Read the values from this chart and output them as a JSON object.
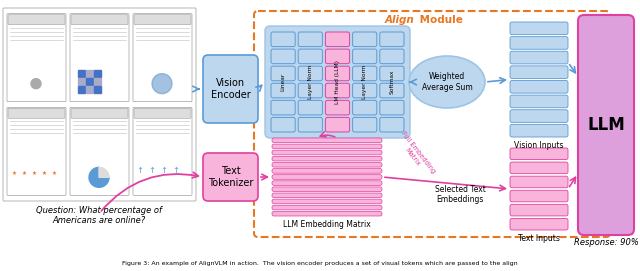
{
  "fig_width": 6.4,
  "fig_height": 2.71,
  "dpi": 100,
  "bg_color": "#ffffff",
  "orange_color": "#E87722",
  "blue_color": "#5B9BD5",
  "blue_light": "#BDD7EE",
  "blue_mid": "#9DC3E6",
  "pink_color": "#E040A0",
  "pink_light": "#F9B4DC",
  "pink_mid": "#F48CBF",
  "purple_light": "#DDA0DD",
  "align_module_label": "Align Module",
  "vision_encoder_label": "Vision\nEncoder",
  "text_tokenizer_label": "Text\nTokenizer",
  "llm_label": "LLM",
  "weighted_avg_label": "Weighted\nAverage Sum",
  "vision_inputs_label": "Vision Inputs",
  "text_inputs_label": "Text Inputs",
  "llm_embedding_label": "LLM Embedding Matrix",
  "full_embedding_label": "Full Embedding\nMatrix",
  "selected_text_label": "Selected Text\nEmbeddings",
  "response_label": "Response: 90%",
  "question_label": "Question: What percentage of\nAmericans are online?",
  "linear_label": "Linear",
  "layer_norm1_label": "Layer Norm",
  "lm_head_label": "LM Head (LLM)",
  "layer_norm2_label": "Layer Norm",
  "softmax_label": "Softmax",
  "caption_text": "Figure 3: An example of AlignVLM in action.  The vision encoder produces a set of visual tokens which are passed to the align"
}
